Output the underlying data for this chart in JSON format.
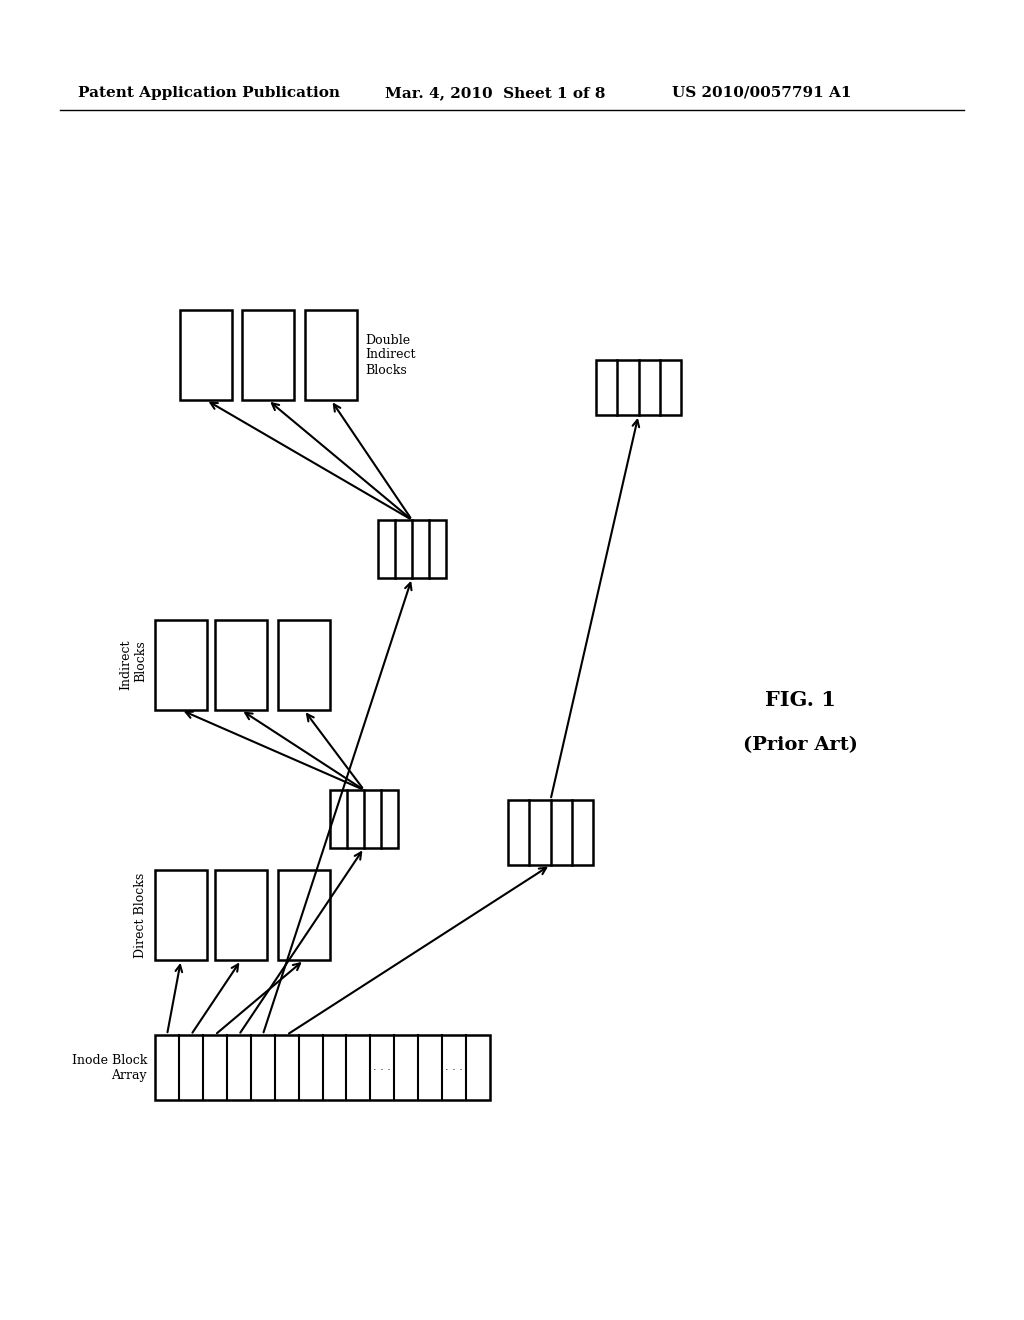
{
  "title_left": "Patent Application Publication",
  "title_mid": "Mar. 4, 2010  Sheet 1 of 8",
  "title_right": "US 2010/0057791 A1",
  "fig_label": "FIG. 1",
  "fig_sublabel": "(Prior Art)",
  "bg_color": "#ffffff",
  "text_color": "#000000",
  "inode_label": "Inode Block\nArray",
  "direct_label": "Direct Blocks",
  "indirect_label": "Indirect\nBlocks",
  "double_label": "Double\nIndirect\nBlocks"
}
